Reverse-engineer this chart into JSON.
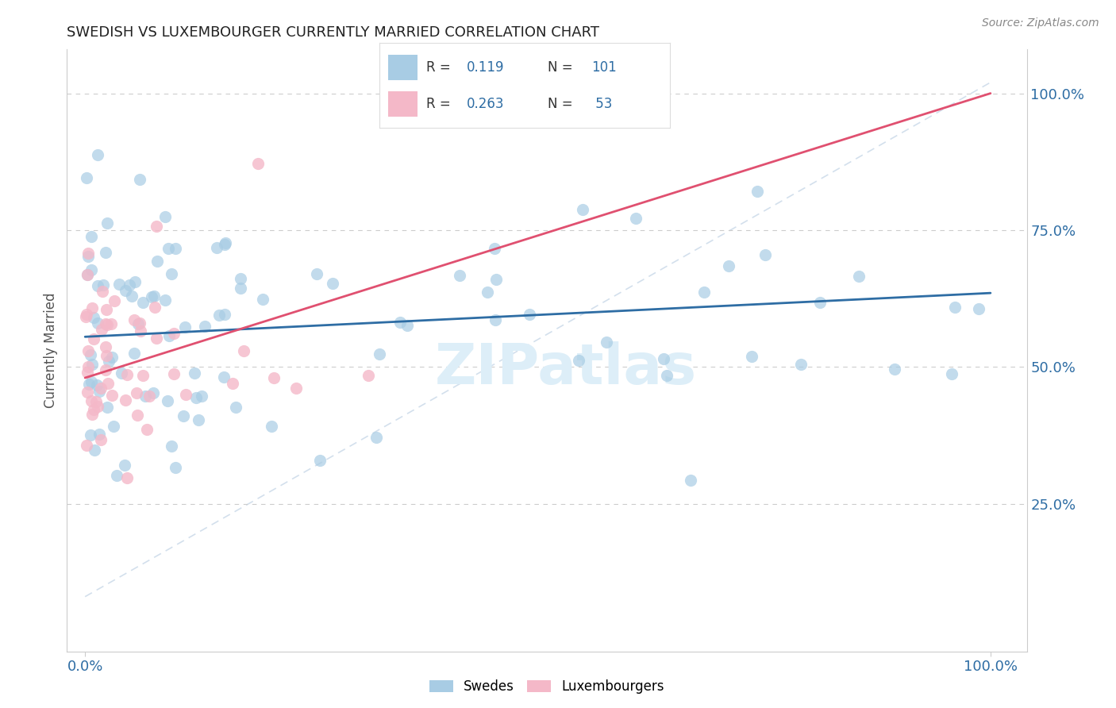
{
  "title": "SWEDISH VS LUXEMBOURGER CURRENTLY MARRIED CORRELATION CHART",
  "source": "Source: ZipAtlas.com",
  "ylabel": "Currently Married",
  "legend_labels": [
    "Swedes",
    "Luxembourgers"
  ],
  "blue_scatter_color": "#a8cce4",
  "pink_scatter_color": "#f4b8c8",
  "blue_line_color": "#2e6da4",
  "pink_line_color": "#e05070",
  "diagonal_line_color": "#c8d8e8",
  "watermark_text": "ZIPatlas",
  "watermark_color": "#ddeef8",
  "grid_color": "#cccccc",
  "background_color": "#ffffff",
  "title_color": "#222222",
  "axis_label_color": "#555555",
  "legend_value_color": "#2e6da4",
  "source_color": "#888888",
  "ytick_values": [
    0.25,
    0.5,
    0.75,
    1.0
  ],
  "ytick_labels": [
    "25.0%",
    "50.0%",
    "75.0%",
    "100.0%"
  ],
  "xlim": [
    -0.02,
    1.04
  ],
  "ylim": [
    -0.02,
    1.08
  ],
  "figsize": [
    14.06,
    8.92
  ],
  "dpi": 100,
  "blue_n": 101,
  "pink_n": 53,
  "blue_r": "0.119",
  "pink_r": "0.263",
  "blue_n_str": "101",
  "pink_n_str": " 53",
  "blue_trend_x": [
    0.0,
    1.0
  ],
  "blue_trend_y": [
    0.555,
    0.635
  ],
  "pink_trend_x": [
    0.0,
    1.0
  ],
  "pink_trend_y": [
    0.48,
    1.0
  ],
  "seed": 99
}
